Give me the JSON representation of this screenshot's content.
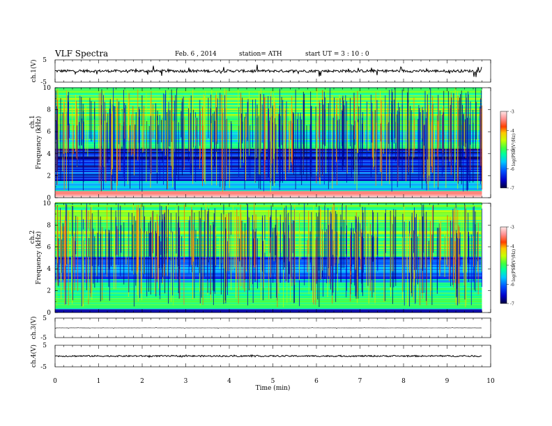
{
  "header": {
    "title": "VLF Spectra",
    "date": "Feb. 6 , 2014",
    "station": "station= ATH",
    "start": "start UT = 3 : 10 : 0"
  },
  "chart_data": {
    "type": "heatmap",
    "title": "VLF Spectra",
    "xlabel": "Time (min)",
    "xlim": [
      0,
      10
    ],
    "xticks": [
      "0",
      "1",
      "2",
      "3",
      "4",
      "5",
      "6",
      "7",
      "8",
      "9",
      "10"
    ],
    "data_end_min": 9.8,
    "panels": [
      {
        "id": "ch1-waveform",
        "type": "line",
        "ylabel": "ch.1(V)",
        "ylim": [
          -5,
          5
        ],
        "yticks": [
          "5",
          "-5"
        ],
        "baseline": 0,
        "noise_amplitude": 0.6,
        "spike_amplitude": 2.5
      },
      {
        "id": "ch1-spectrogram",
        "type": "heatmap",
        "ylabel_top": "ch.1",
        "ylabel": "Frequency (kHz)",
        "ylim": [
          0,
          10
        ],
        "yticks": [
          "0",
          "2",
          "4",
          "6",
          "8",
          "10"
        ],
        "colorbar_label": "log(PSD(V²/Hz)",
        "colorbar_ticks": [
          "-3",
          "-4",
          "-5",
          "-6",
          "-7"
        ],
        "colorbar_range": [
          -7,
          -3
        ],
        "bands": [
          {
            "from_khz": 0.0,
            "to_khz": 0.6,
            "level": -3.4
          },
          {
            "from_khz": 0.6,
            "to_khz": 1.5,
            "level": -5.6
          },
          {
            "from_khz": 1.5,
            "to_khz": 3.0,
            "level": -6.4
          },
          {
            "from_khz": 3.0,
            "to_khz": 4.4,
            "level": -6.6
          },
          {
            "from_khz": 4.4,
            "to_khz": 6.0,
            "level": -5.6
          },
          {
            "from_khz": 6.0,
            "to_khz": 10.0,
            "level": -5.0
          }
        ]
      },
      {
        "id": "ch2-spectrogram",
        "type": "heatmap",
        "ylabel_top": "ch.2",
        "ylabel": "Frequency (kHz)",
        "ylim": [
          0,
          10
        ],
        "yticks": [
          "0",
          "2",
          "4",
          "6",
          "8",
          "10"
        ],
        "colorbar_label": "log(PSD(V²/Hz)",
        "colorbar_ticks": [
          "-3",
          "-4",
          "-5",
          "-6",
          "-7"
        ],
        "colorbar_range": [
          -7,
          -3
        ],
        "bands": [
          {
            "from_khz": 0.0,
            "to_khz": 0.3,
            "level": -6.8
          },
          {
            "from_khz": 0.3,
            "to_khz": 2.2,
            "level": -5.2
          },
          {
            "from_khz": 2.2,
            "to_khz": 3.0,
            "level": -5.6
          },
          {
            "from_khz": 3.0,
            "to_khz": 5.0,
            "level": -6.2
          },
          {
            "from_khz": 5.0,
            "to_khz": 10.0,
            "level": -5.0
          }
        ]
      },
      {
        "id": "ch3-waveform",
        "type": "line",
        "ylabel": "ch.3(V)",
        "ylim": [
          -5,
          5
        ],
        "yticks": [
          "5",
          "-5"
        ],
        "baseline": 0,
        "noise_amplitude": 0.05,
        "spike_amplitude": 0.3
      },
      {
        "id": "ch4-waveform",
        "type": "line",
        "ylabel": "ch.4(V)",
        "ylim": [
          -5,
          5
        ],
        "yticks": [
          "5",
          "-5"
        ],
        "baseline": 0,
        "noise_amplitude": 0.35,
        "spike_amplitude": 0.4
      }
    ],
    "colors": {
      "colormap": [
        "#000040",
        "#0000c8",
        "#0050ff",
        "#00c8ff",
        "#00ffa0",
        "#40ff40",
        "#c8ff00",
        "#ffc800",
        "#ff4000",
        "#ff9090",
        "#ffe8e8"
      ]
    }
  }
}
